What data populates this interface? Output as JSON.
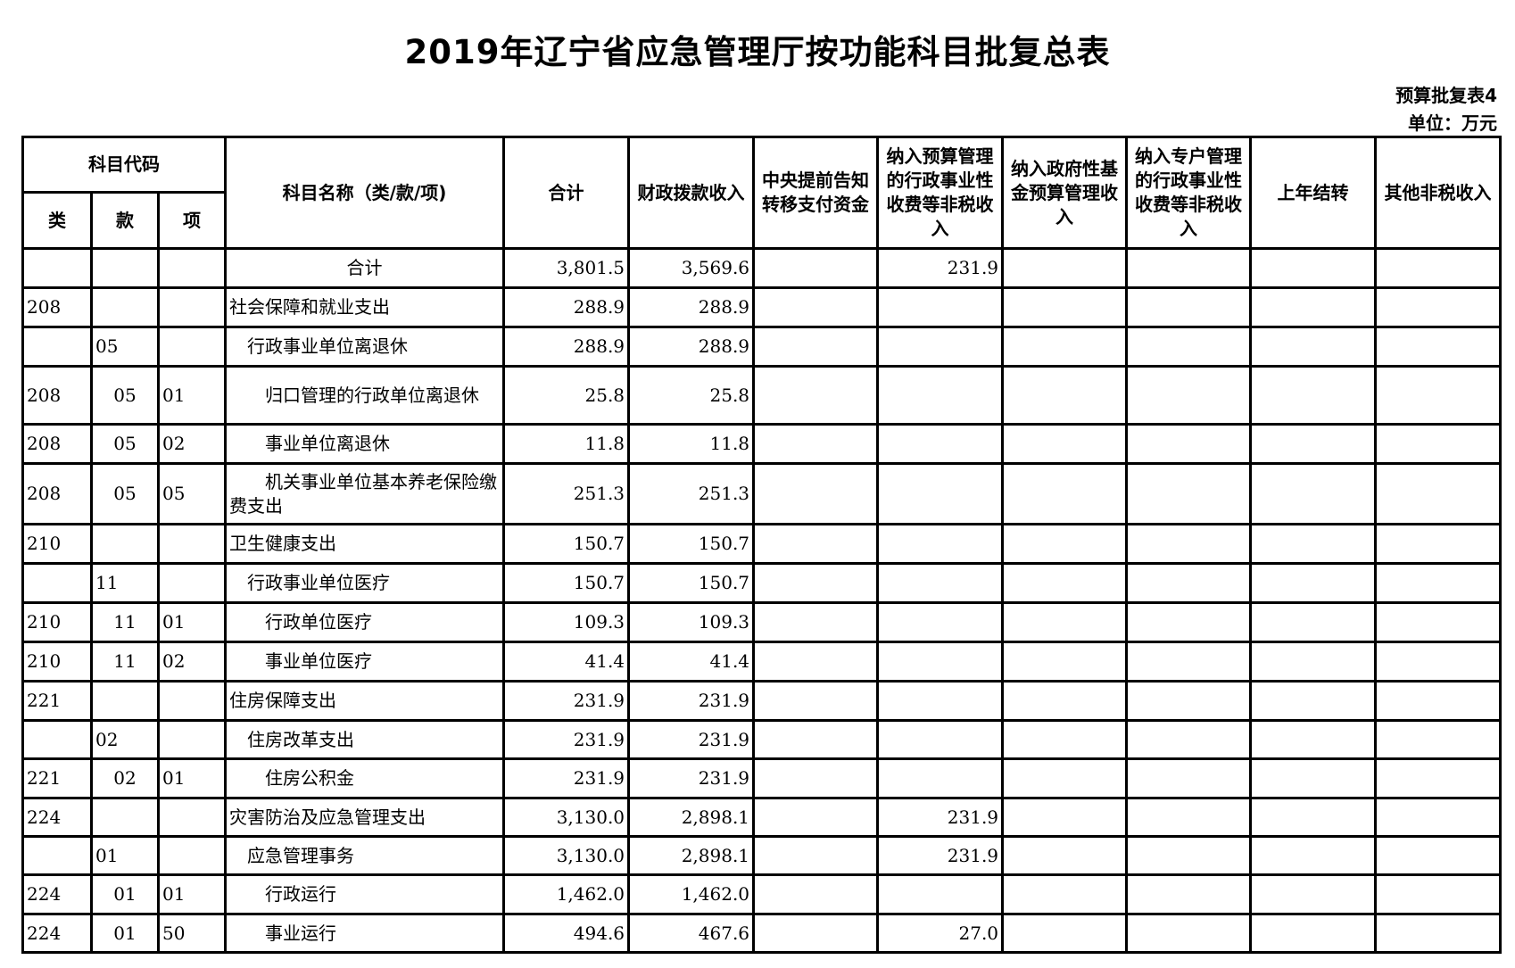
{
  "title": "2019年辽宁省应急管理厅按功能科目批复总表",
  "table_id": "预算批复表4",
  "unit": "单位：万元",
  "header": {
    "code_group": "科目代码",
    "lei": "类",
    "kuan": "款",
    "xiang": "项",
    "name": "科目名称（类/款/项)",
    "total": "合计",
    "fiscal": "财政拨款收入",
    "central": "中央提前告知转移支付资金",
    "admin_fee": "纳入预算管理的行政事业性收费等非税收入",
    "gov_fund": "纳入政府性基金预算管理收入",
    "special": "纳入专户管理的行政事业性收费等非税收入",
    "carryover": "上年结转",
    "other": "其他非税收入"
  },
  "rows": [
    {
      "lei": "",
      "kuan": "",
      "xiang": "",
      "name": "合计",
      "level": "total",
      "total": "3,801.5",
      "fiscal": "3,569.6",
      "central": "",
      "admin_fee": "231.9",
      "gov_fund": "",
      "special": "",
      "carryover": "",
      "other": ""
    },
    {
      "lei": "208",
      "kuan": "",
      "xiang": "",
      "name": "社会保障和就业支出",
      "level": "1",
      "total": "288.9",
      "fiscal": "288.9",
      "central": "",
      "admin_fee": "",
      "gov_fund": "",
      "special": "",
      "carryover": "",
      "other": ""
    },
    {
      "lei": "",
      "kuan": "05",
      "xiang": "",
      "name": "行政事业单位离退休",
      "level": "2",
      "total": "288.9",
      "fiscal": "288.9",
      "central": "",
      "admin_fee": "",
      "gov_fund": "",
      "special": "",
      "carryover": "",
      "other": ""
    },
    {
      "lei": "208",
      "kuan": "05",
      "xiang": "01",
      "name": "归口管理的行政单位离退休",
      "level": "3",
      "total": "25.8",
      "fiscal": "25.8",
      "central": "",
      "admin_fee": "",
      "gov_fund": "",
      "special": "",
      "carryover": "",
      "other": ""
    },
    {
      "lei": "208",
      "kuan": "05",
      "xiang": "02",
      "name": "事业单位离退休",
      "level": "3",
      "total": "11.8",
      "fiscal": "11.8",
      "central": "",
      "admin_fee": "",
      "gov_fund": "",
      "special": "",
      "carryover": "",
      "other": ""
    },
    {
      "lei": "208",
      "kuan": "05",
      "xiang": "05",
      "name": "机关事业单位基本养老保险缴费支出",
      "level": "3",
      "total": "251.3",
      "fiscal": "251.3",
      "central": "",
      "admin_fee": "",
      "gov_fund": "",
      "special": "",
      "carryover": "",
      "other": ""
    },
    {
      "lei": "210",
      "kuan": "",
      "xiang": "",
      "name": "卫生健康支出",
      "level": "1",
      "total": "150.7",
      "fiscal": "150.7",
      "central": "",
      "admin_fee": "",
      "gov_fund": "",
      "special": "",
      "carryover": "",
      "other": ""
    },
    {
      "lei": "",
      "kuan": "11",
      "xiang": "",
      "name": "行政事业单位医疗",
      "level": "2",
      "total": "150.7",
      "fiscal": "150.7",
      "central": "",
      "admin_fee": "",
      "gov_fund": "",
      "special": "",
      "carryover": "",
      "other": ""
    },
    {
      "lei": "210",
      "kuan": "11",
      "xiang": "01",
      "name": "行政单位医疗",
      "level": "3",
      "total": "109.3",
      "fiscal": "109.3",
      "central": "",
      "admin_fee": "",
      "gov_fund": "",
      "special": "",
      "carryover": "",
      "other": ""
    },
    {
      "lei": "210",
      "kuan": "11",
      "xiang": "02",
      "name": "事业单位医疗",
      "level": "3",
      "total": "41.4",
      "fiscal": "41.4",
      "central": "",
      "admin_fee": "",
      "gov_fund": "",
      "special": "",
      "carryover": "",
      "other": ""
    },
    {
      "lei": "221",
      "kuan": "",
      "xiang": "",
      "name": "住房保障支出",
      "level": "1",
      "total": "231.9",
      "fiscal": "231.9",
      "central": "",
      "admin_fee": "",
      "gov_fund": "",
      "special": "",
      "carryover": "",
      "other": ""
    },
    {
      "lei": "",
      "kuan": "02",
      "xiang": "",
      "name": "住房改革支出",
      "level": "2",
      "total": "231.9",
      "fiscal": "231.9",
      "central": "",
      "admin_fee": "",
      "gov_fund": "",
      "special": "",
      "carryover": "",
      "other": ""
    },
    {
      "lei": "221",
      "kuan": "02",
      "xiang": "01",
      "name": "住房公积金",
      "level": "3",
      "total": "231.9",
      "fiscal": "231.9",
      "central": "",
      "admin_fee": "",
      "gov_fund": "",
      "special": "",
      "carryover": "",
      "other": ""
    },
    {
      "lei": "224",
      "kuan": "",
      "xiang": "",
      "name": "灾害防治及应急管理支出",
      "level": "1",
      "total": "3,130.0",
      "fiscal": "2,898.1",
      "central": "",
      "admin_fee": "231.9",
      "gov_fund": "",
      "special": "",
      "carryover": "",
      "other": ""
    },
    {
      "lei": "",
      "kuan": "01",
      "xiang": "",
      "name": "应急管理事务",
      "level": "2",
      "total": "3,130.0",
      "fiscal": "2,898.1",
      "central": "",
      "admin_fee": "231.9",
      "gov_fund": "",
      "special": "",
      "carryover": "",
      "other": ""
    },
    {
      "lei": "224",
      "kuan": "01",
      "xiang": "01",
      "name": "行政运行",
      "level": "3",
      "total": "1,462.0",
      "fiscal": "1,462.0",
      "central": "",
      "admin_fee": "",
      "gov_fund": "",
      "special": "",
      "carryover": "",
      "other": ""
    },
    {
      "lei": "224",
      "kuan": "01",
      "xiang": "50",
      "name": "事业运行",
      "level": "3",
      "total": "494.6",
      "fiscal": "467.6",
      "central": "",
      "admin_fee": "27.0",
      "gov_fund": "",
      "special": "",
      "carryover": "",
      "other": ""
    }
  ]
}
